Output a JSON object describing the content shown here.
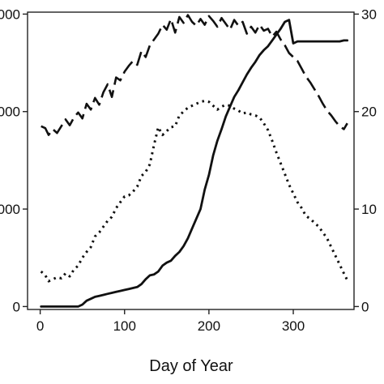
{
  "chart_data": {
    "type": "line",
    "title": "",
    "xlabel": "Day of Year",
    "ylabel_left": "",
    "ylabel_right": "",
    "xlim": [
      -15,
      372
    ],
    "ylim_left": [
      -30,
      3020
    ],
    "ylim_right": [
      -0.3,
      30.2
    ],
    "grid": false,
    "legend": "none",
    "x_ticks": [
      0,
      100,
      200,
      300
    ],
    "x_tick_labels": [
      "0",
      "100",
      "200",
      "300"
    ],
    "y_left_ticks": [
      0,
      1000,
      2000,
      3000
    ],
    "y_left_tick_labels": [
      "0",
      "000",
      "000",
      "000"
    ],
    "y_right_ticks": [
      0,
      10,
      20,
      30
    ],
    "y_right_tick_labels": [
      "0",
      "10",
      "20",
      "30"
    ],
    "series": [
      {
        "style": "dashed",
        "axis": "right",
        "x": [
          1,
          6,
          10,
          15,
          20,
          25,
          30,
          35,
          40,
          45,
          50,
          55,
          60,
          65,
          70,
          75,
          80,
          85,
          90,
          95,
          100,
          105,
          110,
          115,
          120,
          125,
          130,
          135,
          140,
          145,
          150,
          155,
          160,
          165,
          170,
          175,
          180,
          185,
          190,
          195,
          200,
          205,
          210,
          215,
          220,
          225,
          230,
          235,
          240,
          245,
          250,
          255,
          260,
          265,
          270,
          275,
          280,
          285,
          290,
          295,
          300,
          305,
          310,
          315,
          320,
          325,
          330,
          335,
          340,
          345,
          350,
          355,
          360,
          364
        ],
        "y": [
          18.5,
          18.3,
          17.6,
          18.2,
          17.8,
          18.5,
          19.2,
          18.6,
          19.4,
          19.9,
          19.3,
          20.8,
          20.2,
          21.4,
          20.7,
          22.0,
          22.8,
          21.5,
          23.5,
          23.2,
          24.1,
          24.7,
          25.2,
          24.8,
          26.2,
          25.6,
          26.8,
          27.4,
          28.0,
          28.9,
          28.4,
          29.5,
          28.1,
          29.7,
          29.1,
          29.9,
          29.2,
          28.8,
          29.5,
          28.9,
          29.8,
          29.3,
          28.7,
          29.6,
          29.0,
          28.4,
          29.4,
          28.8,
          29.2,
          28.0,
          28.7,
          28.1,
          28.9,
          28.3,
          28.5,
          27.7,
          28.2,
          27.4,
          26.8,
          26.0,
          25.6,
          25.2,
          24.4,
          23.6,
          23.0,
          22.3,
          21.6,
          20.8,
          20.1,
          19.6,
          19.0,
          18.5,
          18.2,
          18.8
        ]
      },
      {
        "style": "dotted",
        "axis": "left",
        "x": [
          1,
          6,
          10,
          15,
          20,
          25,
          30,
          35,
          40,
          45,
          50,
          55,
          60,
          65,
          70,
          75,
          80,
          85,
          90,
          95,
          100,
          105,
          110,
          115,
          120,
          125,
          130,
          135,
          140,
          145,
          150,
          155,
          160,
          165,
          170,
          175,
          180,
          185,
          190,
          195,
          200,
          205,
          210,
          215,
          220,
          225,
          230,
          235,
          240,
          245,
          250,
          255,
          260,
          265,
          270,
          275,
          280,
          285,
          290,
          295,
          300,
          305,
          310,
          315,
          320,
          325,
          330,
          335,
          340,
          345,
          350,
          355,
          360,
          364
        ],
        "y": [
          360,
          320,
          260,
          280,
          300,
          290,
          340,
          310,
          380,
          420,
          500,
          560,
          610,
          720,
          760,
          820,
          880,
          920,
          1010,
          1070,
          1130,
          1140,
          1180,
          1230,
          1340,
          1380,
          1460,
          1660,
          1840,
          1760,
          1800,
          1840,
          1850,
          1960,
          2000,
          2040,
          2060,
          2080,
          2100,
          2110,
          2100,
          2060,
          2020,
          2050,
          2070,
          2060,
          2030,
          2010,
          1980,
          1990,
          1970,
          1960,
          1940,
          1880,
          1810,
          1700,
          1580,
          1470,
          1360,
          1250,
          1160,
          1070,
          1010,
          930,
          900,
          860,
          820,
          760,
          700,
          610,
          520,
          430,
          340,
          270
        ]
      },
      {
        "style": "solid",
        "axis": "left",
        "x": [
          1,
          6,
          10,
          15,
          20,
          25,
          30,
          35,
          40,
          45,
          50,
          55,
          60,
          65,
          70,
          75,
          80,
          85,
          90,
          95,
          100,
          105,
          110,
          115,
          120,
          125,
          130,
          135,
          140,
          145,
          150,
          155,
          160,
          165,
          170,
          175,
          180,
          185,
          190,
          195,
          200,
          205,
          210,
          215,
          220,
          225,
          230,
          235,
          240,
          245,
          250,
          255,
          260,
          265,
          270,
          275,
          280,
          285,
          290,
          295,
          300,
          305,
          310,
          315,
          320,
          325,
          330,
          335,
          340,
          345,
          350,
          355,
          360,
          364
        ],
        "y": [
          0,
          0,
          0,
          0,
          0,
          0,
          0,
          0,
          0,
          0,
          20,
          60,
          80,
          100,
          110,
          120,
          130,
          140,
          150,
          160,
          170,
          180,
          190,
          200,
          230,
          280,
          320,
          330,
          360,
          420,
          450,
          470,
          520,
          560,
          620,
          700,
          800,
          900,
          1000,
          1200,
          1350,
          1550,
          1700,
          1820,
          1950,
          2050,
          2150,
          2220,
          2300,
          2380,
          2450,
          2510,
          2580,
          2630,
          2670,
          2730,
          2790,
          2850,
          2920,
          2940,
          2700,
          2720,
          2720,
          2720,
          2720,
          2720,
          2720,
          2720,
          2720,
          2720,
          2720,
          2720,
          2730,
          2730
        ]
      }
    ]
  }
}
